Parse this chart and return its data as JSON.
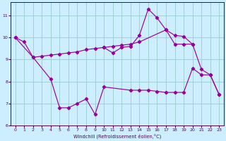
{
  "xlabel": "Windchill (Refroidissement éolien,°C)",
  "background_color": "#cceeff",
  "line_color": "#990099",
  "grid_color": "#99cccc",
  "xlim": [
    -0.5,
    23.5
  ],
  "ylim": [
    6,
    11.6
  ],
  "yticks": [
    6,
    7,
    8,
    9,
    10,
    11
  ],
  "xticks": [
    0,
    1,
    2,
    3,
    4,
    5,
    6,
    7,
    8,
    9,
    10,
    11,
    12,
    13,
    14,
    15,
    16,
    17,
    18,
    19,
    20,
    21,
    22,
    23
  ],
  "line_top_x": [
    0,
    1,
    2,
    3,
    4,
    5,
    6,
    7,
    8,
    9,
    10,
    11,
    12,
    13,
    14,
    17,
    18,
    19,
    20,
    21,
    22,
    23
  ],
  "line_top_y": [
    10.0,
    9.8,
    9.1,
    9.15,
    9.2,
    9.25,
    9.3,
    9.35,
    9.45,
    9.5,
    9.55,
    9.6,
    9.65,
    9.7,
    9.8,
    10.35,
    10.1,
    10.05,
    9.7,
    8.55,
    8.3,
    7.4
  ],
  "line_bot_x": [
    0,
    2,
    4,
    5,
    6,
    7,
    8,
    9,
    10,
    13,
    14,
    15,
    16,
    17,
    18,
    19,
    20,
    21,
    22,
    23
  ],
  "line_bot_y": [
    10.0,
    9.1,
    8.1,
    6.8,
    6.8,
    7.0,
    7.2,
    6.5,
    7.75,
    7.6,
    7.6,
    7.6,
    7.55,
    7.5,
    7.5,
    7.5,
    8.6,
    8.3,
    8.3,
    7.4
  ],
  "line_spike_x": [
    10,
    11,
    12,
    13,
    14,
    15,
    16,
    17,
    18,
    19,
    20
  ],
  "line_spike_y": [
    9.55,
    9.3,
    9.55,
    9.6,
    10.1,
    11.3,
    10.9,
    10.35,
    9.7,
    9.7,
    9.7
  ]
}
